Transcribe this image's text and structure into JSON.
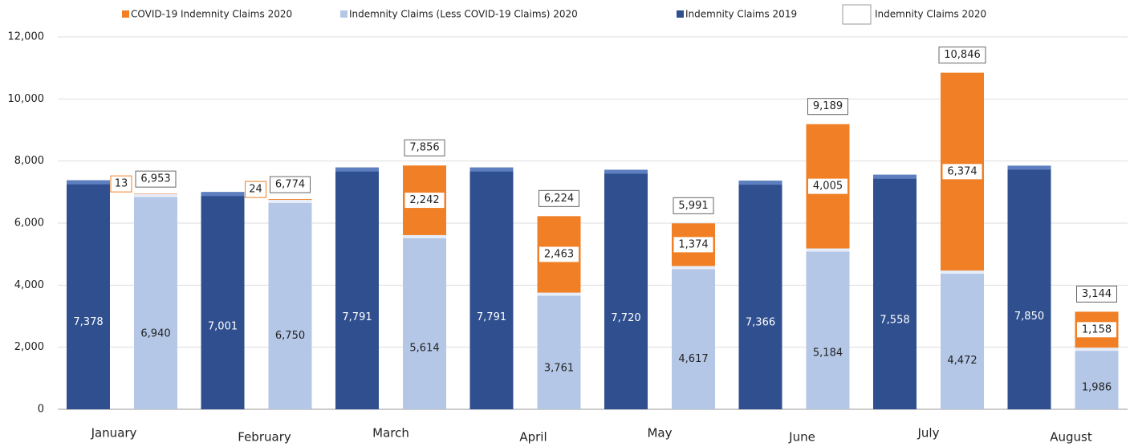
{
  "chart_data": {
    "type": "bar",
    "categories": [
      "January",
      "February",
      "March",
      "April",
      "May",
      "June",
      "July",
      "August"
    ],
    "series": [
      {
        "name": "COVID-19 Indemnity Claims 2020",
        "color": "#f07f25",
        "values": [
          13,
          24,
          2242,
          2463,
          1374,
          4005,
          6374,
          1158
        ],
        "value_labels": [
          "13",
          "24",
          "2,242",
          "2,463",
          "1,374",
          "4,005",
          "6,374",
          "1,158"
        ]
      },
      {
        "name": "Indemnity Claims (Less COVID-19 Claims) 2020",
        "color": "#b4c7e7",
        "values": [
          6940,
          6750,
          5614,
          3761,
          4617,
          5184,
          4472,
          1986
        ],
        "value_labels": [
          "6,940",
          "6,750",
          "5,614",
          "3,761",
          "4,617",
          "5,184",
          "4,472",
          "1,986"
        ]
      },
      {
        "name": "Indemnity Claims 2019",
        "color": "#2f4f8f",
        "values": [
          7378,
          7001,
          7791,
          7791,
          7720,
          7366,
          7558,
          7850
        ],
        "value_labels": [
          "7,378",
          "7,001",
          "7,791",
          "7,791",
          "7,720",
          "7,366",
          "7,558",
          "7,850"
        ]
      },
      {
        "name": "Indemnity Claims 2020",
        "color": "#ffffff",
        "values": [
          6953,
          6774,
          7856,
          6224,
          5991,
          9189,
          10846,
          3144
        ],
        "value_labels": [
          "6,953",
          "6,774",
          "7,856",
          "6,224",
          "5,991",
          "9,189",
          "10,846",
          "3,144"
        ]
      }
    ],
    "ylim": [
      0,
      12000
    ],
    "yticks": [
      0,
      {
        "value": 2000,
        "label": "2,000"
      },
      {
        "value": 4000,
        "label": "4,000"
      },
      {
        "value": 6000,
        "label": "6,000"
      },
      {
        "value": 8000,
        "label": "8,000"
      },
      {
        "value": 10000,
        "label": "10,000"
      },
      {
        "value": 12000,
        "label": "12,000"
      }
    ],
    "grid": true
  }
}
